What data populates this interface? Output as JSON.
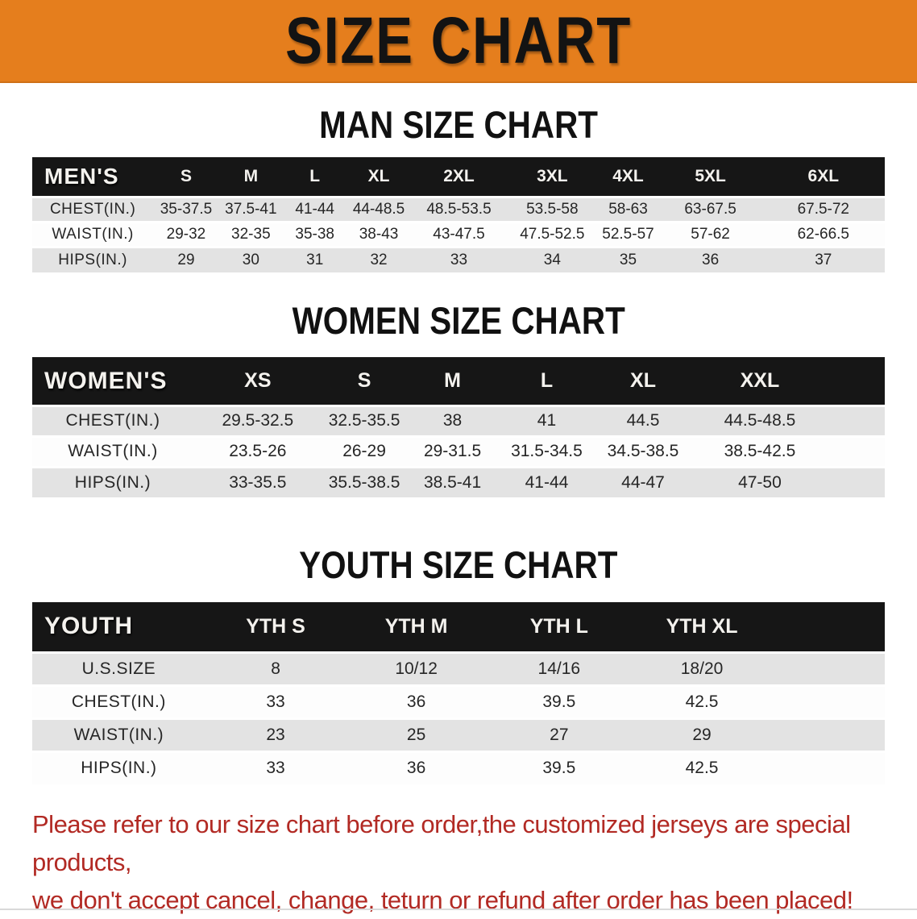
{
  "banner": {
    "title": "SIZE CHART",
    "background": "#E57E1D"
  },
  "colors": {
    "banner_bg": "#E57E1D",
    "table_header_bg": "#161616",
    "stripe_row": "#E3E3E3",
    "disclaimer_text": "#B22A24"
  },
  "sections": [
    {
      "heading": "MAN SIZE CHART",
      "table": {
        "corner_label": "MEN'S",
        "columns": [
          "S",
          "M",
          "L",
          "XL",
          "2XL",
          "3XL",
          "4XL",
          "5XL",
          "6XL"
        ],
        "rows": [
          {
            "label": "CHEST(IN.)",
            "values": [
              "35-37.5",
              "37.5-41",
              "41-44",
              "44-48.5",
              "48.5-53.5",
              "53.5-58",
              "58-63",
              "63-67.5",
              "67.5-72"
            ]
          },
          {
            "label": "WAIST(IN.)",
            "values": [
              "29-32",
              "32-35",
              "35-38",
              "38-43",
              "43-47.5",
              "47.5-52.5",
              "52.5-57",
              "57-62",
              "62-66.5"
            ]
          },
          {
            "label": "HIPS(IN.)",
            "values": [
              "29",
              "30",
              "31",
              "32",
              "33",
              "34",
              "35",
              "36",
              "37"
            ]
          }
        ]
      }
    },
    {
      "heading": "WOMEN SIZE CHART",
      "table": {
        "corner_label": "WOMEN'S",
        "columns": [
          "XS",
          "S",
          "M",
          "L",
          "XL",
          "XXL"
        ],
        "rows": [
          {
            "label": "CHEST(IN.)",
            "values": [
              "29.5-32.5",
              "32.5-35.5",
              "38",
              "41",
              "44.5",
              "44.5-48.5"
            ]
          },
          {
            "label": "WAIST(IN.)",
            "values": [
              "23.5-26",
              "26-29",
              "29-31.5",
              "31.5-34.5",
              "34.5-38.5",
              "38.5-42.5"
            ]
          },
          {
            "label": "HIPS(IN.)",
            "values": [
              "33-35.5",
              "35.5-38.5",
              "38.5-41",
              "41-44",
              "44-47",
              "47-50"
            ]
          }
        ]
      }
    },
    {
      "heading": "YOUTH SIZE CHART",
      "table": {
        "corner_label": "YOUTH",
        "columns": [
          "YTH S",
          "YTH M",
          "YTH L",
          "YTH XL"
        ],
        "rows": [
          {
            "label": "U.S.SIZE",
            "values": [
              "8",
              "10/12",
              "14/16",
              "18/20"
            ]
          },
          {
            "label": "CHEST(IN.)",
            "values": [
              "33",
              "36",
              "39.5",
              "42.5"
            ]
          },
          {
            "label": "WAIST(IN.)",
            "values": [
              "23",
              "25",
              "27",
              "29"
            ]
          },
          {
            "label": "HIPS(IN.)",
            "values": [
              "33",
              "36",
              "39.5",
              "42.5"
            ]
          }
        ]
      }
    }
  ],
  "disclaimer": {
    "line1": "Please refer to our size chart before order,the customized jerseys are special products,",
    "line2": "we don't accept cancel, change, teturn or refund after order has been placed!"
  }
}
